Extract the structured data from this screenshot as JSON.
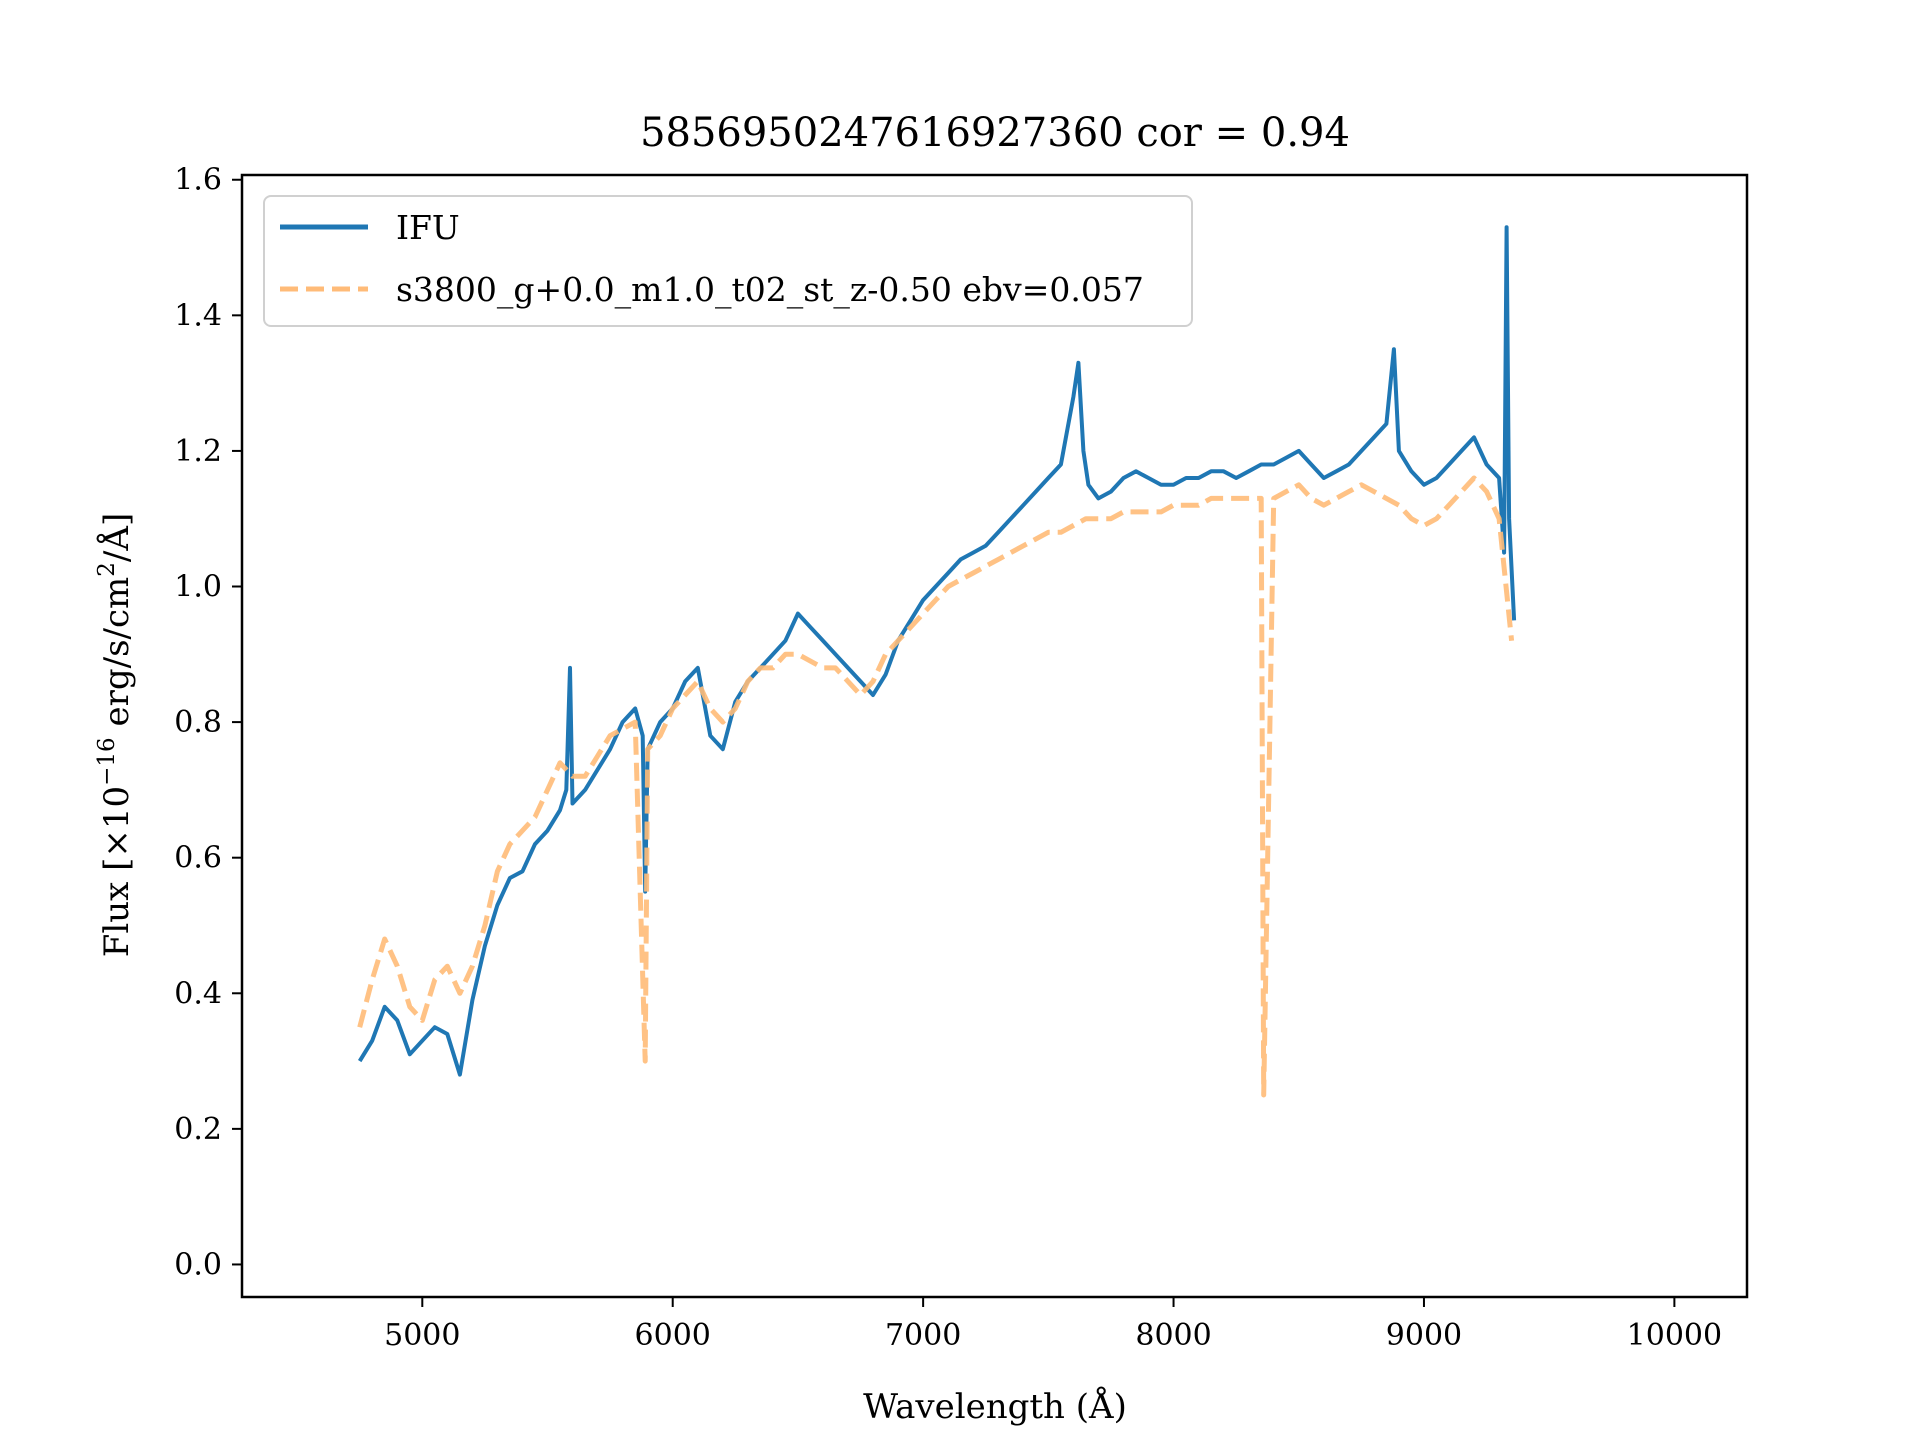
{
  "chart_data": {
    "type": "line",
    "title": "5856950247616927360 cor = 0.94",
    "xlabel": "Wavelength (Å)",
    "ylabel_prefix": "Flux [×10",
    "ylabel_exp": "−16",
    "ylabel_mid": " erg/s/cm",
    "ylabel_exp2": "2",
    "ylabel_suffix": "/Å]",
    "xlim": [
      4280,
      10290
    ],
    "ylim": [
      -0.048,
      1.607
    ],
    "xticks": [
      5000,
      6000,
      7000,
      8000,
      9000,
      10000
    ],
    "xtick_labels": [
      "5000",
      "6000",
      "7000",
      "8000",
      "9000",
      "10000"
    ],
    "yticks": [
      0.0,
      0.2,
      0.4,
      0.6,
      0.8,
      1.0,
      1.2,
      1.4,
      1.6
    ],
    "ytick_labels": [
      "0.0",
      "0.2",
      "0.4",
      "0.6",
      "0.8",
      "1.0",
      "1.2",
      "1.4",
      "1.6"
    ],
    "grid": false,
    "legend_position": "top-left",
    "series": [
      {
        "name": "IFU",
        "color": "#1f77b4",
        "style": "solid",
        "x": [
          4750,
          4800,
          4850,
          4900,
          4950,
          5000,
          5050,
          5100,
          5150,
          5200,
          5250,
          5300,
          5350,
          5400,
          5450,
          5500,
          5550,
          5575,
          5590,
          5600,
          5650,
          5700,
          5750,
          5800,
          5850,
          5880,
          5890,
          5900,
          5950,
          6000,
          6050,
          6100,
          6150,
          6200,
          6250,
          6300,
          6350,
          6400,
          6450,
          6500,
          6550,
          6600,
          6650,
          6700,
          6750,
          6800,
          6850,
          6900,
          6950,
          7000,
          7050,
          7100,
          7150,
          7200,
          7250,
          7300,
          7350,
          7400,
          7450,
          7500,
          7550,
          7600,
          7620,
          7640,
          7660,
          7700,
          7750,
          7800,
          7850,
          7900,
          7950,
          8000,
          8050,
          8100,
          8150,
          8200,
          8250,
          8300,
          8350,
          8400,
          8450,
          8500,
          8550,
          8600,
          8650,
          8700,
          8750,
          8800,
          8850,
          8880,
          8900,
          8950,
          9000,
          9050,
          9100,
          9150,
          9200,
          9250,
          9300,
          9320,
          9330,
          9340,
          9360
        ],
        "y": [
          0.3,
          0.33,
          0.38,
          0.36,
          0.31,
          0.33,
          0.35,
          0.34,
          0.28,
          0.39,
          0.47,
          0.53,
          0.57,
          0.58,
          0.62,
          0.64,
          0.67,
          0.7,
          0.88,
          0.68,
          0.7,
          0.73,
          0.76,
          0.8,
          0.82,
          0.78,
          0.55,
          0.76,
          0.8,
          0.82,
          0.86,
          0.88,
          0.78,
          0.76,
          0.83,
          0.86,
          0.88,
          0.9,
          0.92,
          0.96,
          0.94,
          0.92,
          0.9,
          0.88,
          0.86,
          0.84,
          0.87,
          0.92,
          0.95,
          0.98,
          1.0,
          1.02,
          1.04,
          1.05,
          1.06,
          1.08,
          1.1,
          1.12,
          1.14,
          1.16,
          1.18,
          1.28,
          1.33,
          1.2,
          1.15,
          1.13,
          1.14,
          1.16,
          1.17,
          1.16,
          1.15,
          1.15,
          1.16,
          1.16,
          1.17,
          1.17,
          1.16,
          1.17,
          1.18,
          1.18,
          1.19,
          1.2,
          1.18,
          1.16,
          1.17,
          1.18,
          1.2,
          1.22,
          1.24,
          1.35,
          1.2,
          1.17,
          1.15,
          1.16,
          1.18,
          1.2,
          1.22,
          1.18,
          1.16,
          1.05,
          1.53,
          1.1,
          0.95
        ]
      },
      {
        "name": "s3800_g+0.0_m1.0_t02_st_z-0.50 ebv=0.057",
        "color": "#ffbb78",
        "style": "dashed",
        "x": [
          4750,
          4800,
          4850,
          4900,
          4950,
          5000,
          5050,
          5100,
          5150,
          5200,
          5250,
          5300,
          5350,
          5400,
          5450,
          5500,
          5550,
          5600,
          5650,
          5700,
          5750,
          5800,
          5850,
          5890,
          5900,
          5950,
          6000,
          6050,
          6100,
          6150,
          6200,
          6250,
          6300,
          6350,
          6400,
          6450,
          6500,
          6550,
          6600,
          6650,
          6700,
          6750,
          6800,
          6850,
          6900,
          6950,
          7000,
          7050,
          7100,
          7150,
          7200,
          7250,
          7300,
          7350,
          7400,
          7450,
          7500,
          7550,
          7600,
          7650,
          7700,
          7750,
          7800,
          7850,
          7900,
          7950,
          8000,
          8050,
          8100,
          8150,
          8200,
          8250,
          8300,
          8350,
          8360,
          8400,
          8450,
          8500,
          8550,
          8600,
          8650,
          8700,
          8750,
          8800,
          8850,
          8900,
          8950,
          9000,
          9050,
          9100,
          9150,
          9200,
          9250,
          9300,
          9350
        ],
        "y": [
          0.35,
          0.42,
          0.48,
          0.44,
          0.38,
          0.36,
          0.42,
          0.44,
          0.4,
          0.44,
          0.5,
          0.58,
          0.62,
          0.64,
          0.66,
          0.7,
          0.74,
          0.72,
          0.72,
          0.75,
          0.78,
          0.79,
          0.8,
          0.3,
          0.76,
          0.78,
          0.82,
          0.84,
          0.86,
          0.82,
          0.8,
          0.82,
          0.86,
          0.88,
          0.88,
          0.9,
          0.9,
          0.89,
          0.88,
          0.88,
          0.86,
          0.84,
          0.86,
          0.9,
          0.92,
          0.94,
          0.96,
          0.98,
          1.0,
          1.01,
          1.02,
          1.03,
          1.04,
          1.05,
          1.06,
          1.07,
          1.08,
          1.08,
          1.09,
          1.1,
          1.1,
          1.1,
          1.11,
          1.11,
          1.11,
          1.11,
          1.12,
          1.12,
          1.12,
          1.13,
          1.13,
          1.13,
          1.13,
          1.13,
          0.25,
          1.13,
          1.14,
          1.15,
          1.13,
          1.12,
          1.13,
          1.14,
          1.15,
          1.14,
          1.13,
          1.12,
          1.1,
          1.09,
          1.1,
          1.12,
          1.14,
          1.16,
          1.14,
          1.1,
          0.92
        ]
      }
    ]
  }
}
